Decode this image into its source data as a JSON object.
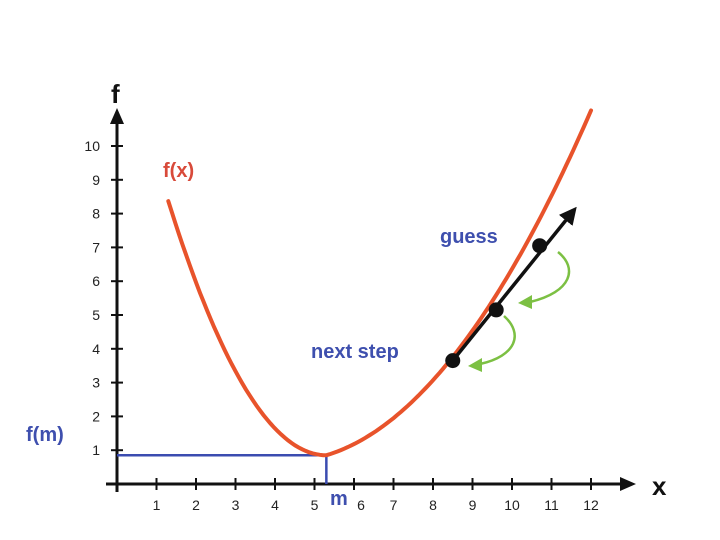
{
  "axes": {
    "x_name": "x",
    "y_name": "f",
    "x_ticks": [
      "1",
      "2",
      "3",
      "4",
      "5",
      "6",
      "7",
      "8",
      "9",
      "10",
      "11",
      "12"
    ],
    "y_ticks": [
      "1",
      "2",
      "3",
      "4",
      "5",
      "6",
      "7",
      "8",
      "9",
      "10"
    ]
  },
  "labels": {
    "curve": "f(x)",
    "minimum_x": "m",
    "minimum_y": "f(m)",
    "guess": "guess",
    "next_step": "next step"
  },
  "colors": {
    "curve": "#e8532b",
    "guide": "#3b4cb0",
    "label_blue": "#3e4fae",
    "label_red": "#d84a3a",
    "green_arrow": "#7cc043",
    "gradient_arrow": "#111111"
  },
  "curve": {
    "x_min": 1.3,
    "x_max": 12.0,
    "minimum": {
      "x": 5.3,
      "y": 0.85
    }
  },
  "points": [
    {
      "name": "guess-point",
      "x": 10.7,
      "y": 7.05
    },
    {
      "name": "middle-point",
      "x": 9.6,
      "y": 5.15
    },
    {
      "name": "next-step-point",
      "x": 8.5,
      "y": 3.65
    }
  ]
}
